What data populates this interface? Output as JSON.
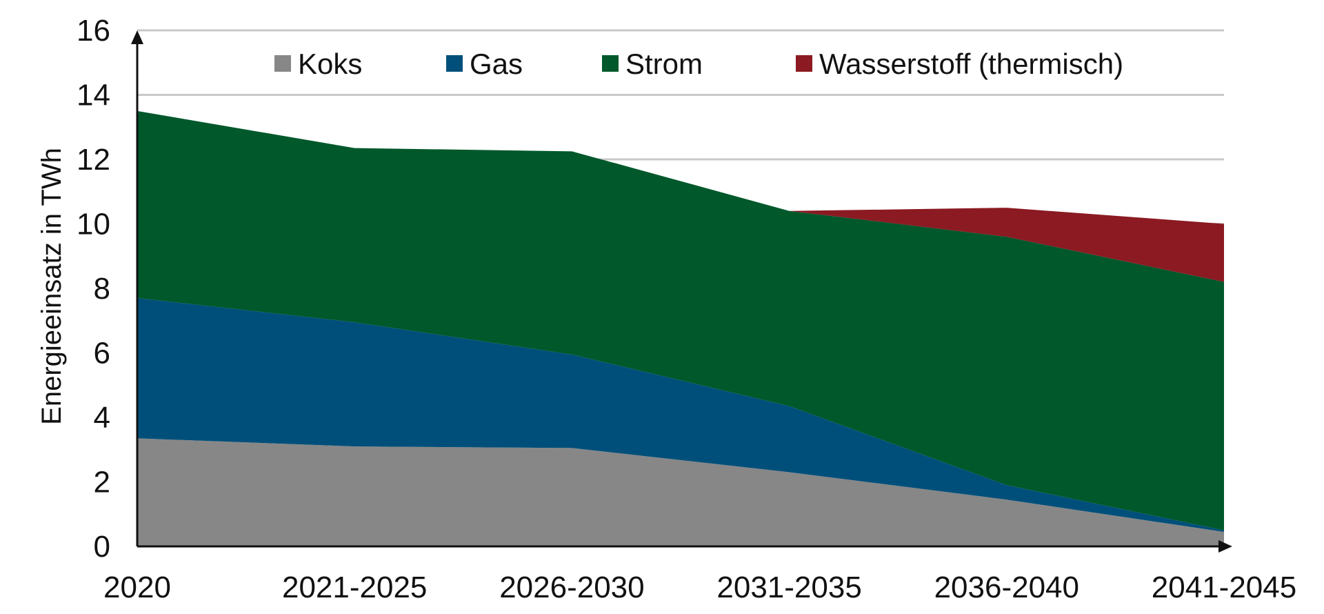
{
  "chart_data": {
    "type": "area",
    "stacked": true,
    "categories": [
      "2020",
      "2021-2025",
      "2026-2030",
      "2031-2035",
      "2036-2040",
      "2041-2045"
    ],
    "series": [
      {
        "name": "Koks",
        "color": "#878787",
        "values": [
          3.35,
          3.1,
          3.05,
          2.3,
          1.45,
          0.45
        ]
      },
      {
        "name": "Gas",
        "color": "#004f7a",
        "values": [
          4.35,
          3.85,
          2.9,
          2.05,
          0.45,
          0.05
        ]
      },
      {
        "name": "Strom",
        "color": "#00582b",
        "values": [
          5.8,
          5.4,
          6.3,
          6.05,
          7.7,
          7.7
        ]
      },
      {
        "name": "Wasserstoff (thermisch)",
        "color": "#8b1a22",
        "values": [
          0,
          0,
          0,
          0,
          0.9,
          1.8
        ]
      }
    ],
    "xlabel": "",
    "ylabel": "Energieeinsatz in TWh",
    "ylim": [
      0,
      16
    ],
    "yticks": [
      "0",
      "2",
      "4",
      "6",
      "8",
      "10",
      "12",
      "14",
      "16"
    ],
    "gridlines": true,
    "legend_position": "top"
  }
}
